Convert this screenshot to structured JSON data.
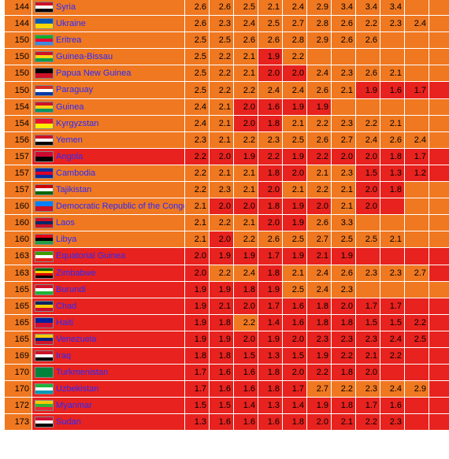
{
  "colors": {
    "orange": "#f07820",
    "red": "#e8221e",
    "link": "#2a2aff"
  },
  "rows": [
    {
      "rank": "144",
      "country": "Syria",
      "flag": [
        "#ce1126",
        "#ffffff",
        "#000000"
      ],
      "scores": [
        "2.6",
        "2.6",
        "2.5",
        "2.1",
        "2.4",
        "2.9",
        "3.4",
        "3.4",
        "3.4",
        "",
        ""
      ],
      "cls": "ooooooooooo"
    },
    {
      "rank": "144",
      "country": "Ukraine",
      "flag": [
        "#0057b7",
        "#ffd700"
      ],
      "scores": [
        "2.6",
        "2.3",
        "2.4",
        "2.5",
        "2.7",
        "2.8",
        "2.6",
        "2.2",
        "2.3",
        "2.4",
        ""
      ],
      "cls": "ooooooooooo"
    },
    {
      "rank": "150",
      "country": "Eritrea",
      "flag": [
        "#12ad2b",
        "#ea0437",
        "#4189dd"
      ],
      "scores": [
        "2.5",
        "2.5",
        "2.6",
        "2.6",
        "2.8",
        "2.9",
        "2.6",
        "2.6",
        "",
        "",
        ""
      ],
      "cls": "ooooooooooo"
    },
    {
      "rank": "150",
      "country": "Guinea-Bissau",
      "flag": [
        "#ce1126",
        "#fcd116",
        "#009e49"
      ],
      "scores": [
        "2.5",
        "2.2",
        "2.1",
        "1.9",
        "2.2",
        "",
        "",
        "",
        "",
        "",
        ""
      ],
      "cls": "oooroooooooo"
    },
    {
      "rank": "150",
      "country": "Papua New Guinea",
      "flag": [
        "#000000",
        "#ce1126"
      ],
      "scores": [
        "2.5",
        "2.2",
        "2.1",
        "2.0",
        "2.0",
        "2.4",
        "2.3",
        "2.6",
        "2.1",
        "",
        ""
      ],
      "cls": "ooorrooooooo"
    },
    {
      "rank": "150",
      "country": "Paraguay",
      "flag": [
        "#d52b1e",
        "#ffffff",
        "#0038a8"
      ],
      "scores": [
        "2.5",
        "2.2",
        "2.2",
        "2.4",
        "2.4",
        "2.6",
        "2.1",
        "1.9",
        "1.6",
        "1.7",
        ""
      ],
      "cls": "ooooooorrrr"
    },
    {
      "rank": "154",
      "country": "Guinea",
      "flag": [
        "#ce1126",
        "#fcd116",
        "#009460"
      ],
      "scores": [
        "2.4",
        "2.1",
        "2.0",
        "1.6",
        "1.9",
        "1.9",
        "",
        "",
        "",
        "",
        ""
      ],
      "cls": "oorrrroooooo"
    },
    {
      "rank": "154",
      "country": "Kyrgyzstan",
      "flag": [
        "#e8112d",
        "#ffef00"
      ],
      "scores": [
        "2.4",
        "2.1",
        "2.0",
        "1.8",
        "2.1",
        "2.2",
        "2.3",
        "2.2",
        "2.1",
        "",
        ""
      ],
      "cls": "oorrooooooo"
    },
    {
      "rank": "156",
      "country": "Yemen",
      "flag": [
        "#ce1126",
        "#ffffff",
        "#000000"
      ],
      "scores": [
        "2.3",
        "2.1",
        "2.2",
        "2.3",
        "2.5",
        "2.6",
        "2.7",
        "2.4",
        "2.6",
        "2.4",
        ""
      ],
      "cls": "ooooooooooo"
    },
    {
      "rank": "157",
      "country": "Angola",
      "flag": [
        "#cc092f",
        "#000000"
      ],
      "scores": [
        "2.2",
        "2.0",
        "1.9",
        "2.2",
        "1.9",
        "2.2",
        "2.0",
        "2.0",
        "1.8",
        "1.7",
        ""
      ],
      "cls": "rrrrrrrrrrr"
    },
    {
      "rank": "157",
      "country": "Cambodia",
      "flag": [
        "#032ea1",
        "#e00025",
        "#032ea1"
      ],
      "scores": [
        "2.2",
        "2.1",
        "2.1",
        "1.8",
        "2.0",
        "2.1",
        "2.3",
        "1.5",
        "1.3",
        "1.2",
        ""
      ],
      "cls": "ooorroorrrr"
    },
    {
      "rank": "157",
      "country": "Tajikistan",
      "flag": [
        "#cc0000",
        "#ffffff",
        "#006600"
      ],
      "scores": [
        "2.2",
        "2.3",
        "2.1",
        "2.0",
        "2.1",
        "2.2",
        "2.1",
        "2.0",
        "1.8",
        "",
        ""
      ],
      "cls": "ooorooorrooo"
    },
    {
      "rank": "160",
      "country": "Democratic Republic of the Congo",
      "flag": [
        "#007fff",
        "#ce1021"
      ],
      "scores": [
        "2.1",
        "2.0",
        "2.0",
        "1.8",
        "1.9",
        "2.0",
        "2.1",
        "2.0",
        "",
        "",
        ""
      ],
      "cls": "orrrrrorrooo"
    },
    {
      "rank": "160",
      "country": "Laos",
      "flag": [
        "#ce1126",
        "#002868",
        "#ce1126"
      ],
      "scores": [
        "2.1",
        "2.2",
        "2.1",
        "2.0",
        "1.9",
        "2.6",
        "3.3",
        "",
        "",
        "",
        ""
      ],
      "cls": "ooorrooooooo"
    },
    {
      "rank": "160",
      "country": "Libya",
      "flag": [
        "#e70013",
        "#000000",
        "#239e46"
      ],
      "scores": [
        "2.1",
        "2.0",
        "2.2",
        "2.6",
        "2.5",
        "2.7",
        "2.5",
        "2.5",
        "2.1",
        "",
        ""
      ],
      "cls": "orooooooooo"
    },
    {
      "rank": "163",
      "country": "Equatorial Guinea",
      "flag": [
        "#3e9a00",
        "#ffffff",
        "#e32118"
      ],
      "scores": [
        "2.0",
        "1.9",
        "1.9",
        "1.7",
        "1.9",
        "2.1",
        "1.9",
        "",
        "",
        "",
        ""
      ],
      "cls": "rrrrrrrrrrr"
    },
    {
      "rank": "163",
      "country": "Zimbabwe",
      "flag": [
        "#006400",
        "#ffd200",
        "#d40000",
        "#000000"
      ],
      "scores": [
        "2.0",
        "2.2",
        "2.4",
        "1.8",
        "2.1",
        "2.4",
        "2.6",
        "2.3",
        "2.3",
        "2.7",
        ""
      ],
      "cls": "rooroooooor"
    },
    {
      "rank": "165",
      "country": "Burundi",
      "flag": [
        "#ce1126",
        "#ffffff",
        "#1eb53a"
      ],
      "scores": [
        "1.9",
        "1.9",
        "1.8",
        "1.9",
        "2.5",
        "2.4",
        "2.3",
        "",
        "",
        "",
        ""
      ],
      "cls": "rrrroooooooo"
    },
    {
      "rank": "165",
      "country": "Chad",
      "flag": [
        "#002664",
        "#fecb00",
        "#c60c30"
      ],
      "scores": [
        "1.9",
        "2.1",
        "2.0",
        "1.7",
        "1.6",
        "1.8",
        "2.0",
        "1.7",
        "1.7",
        "",
        ""
      ],
      "cls": "rrrrrrrrrrr"
    },
    {
      "rank": "165",
      "country": "Haiti",
      "flag": [
        "#00209f",
        "#d21034"
      ],
      "scores": [
        "1.9",
        "1.8",
        "2.2",
        "1.4",
        "1.6",
        "1.8",
        "1.8",
        "1.5",
        "1.5",
        "2.2",
        ""
      ],
      "cls": "rrorrrrrrrr"
    },
    {
      "rank": "165",
      "country": "Venezuela",
      "flag": [
        "#ffcc00",
        "#00247d",
        "#cf142b"
      ],
      "scores": [
        "1.9",
        "1.9",
        "2.0",
        "1.9",
        "2.0",
        "2.3",
        "2.3",
        "2.3",
        "2.4",
        "2.5",
        ""
      ],
      "cls": "rrrrrrrrrrr"
    },
    {
      "rank": "169",
      "country": "Iraq",
      "flag": [
        "#ce1126",
        "#ffffff",
        "#000000"
      ],
      "scores": [
        "1.8",
        "1.8",
        "1.5",
        "1.3",
        "1.5",
        "1.9",
        "2.2",
        "2.1",
        "2.2",
        "",
        ""
      ],
      "cls": "rrrrrrrrrrr"
    },
    {
      "rank": "170",
      "country": "Turkmenistan",
      "flag": [
        "#00843d",
        "#00843d"
      ],
      "scores": [
        "1.7",
        "1.6",
        "1.6",
        "1.8",
        "2.0",
        "2.2",
        "1.8",
        "2.0",
        "",
        "",
        ""
      ],
      "cls": "rrrrrrrrrrr"
    },
    {
      "rank": "170",
      "country": "Uzbekistan",
      "flag": [
        "#1eb53a",
        "#ffffff",
        "#0099b5"
      ],
      "scores": [
        "1.7",
        "1.6",
        "1.6",
        "1.8",
        "1.7",
        "2.7",
        "2.2",
        "2.3",
        "2.4",
        "2.9",
        ""
      ],
      "cls": "rrrrrooooor"
    },
    {
      "rank": "172",
      "country": "Myanmar",
      "flag": [
        "#fecb00",
        "#34b233",
        "#ea2839"
      ],
      "scores": [
        "1.5",
        "1.5",
        "1.4",
        "1.3",
        "1.4",
        "1.9",
        "1.8",
        "1.7",
        "1.6",
        "",
        ""
      ],
      "cls": "rrrrrrrrrrr"
    },
    {
      "rank": "173",
      "country": "Sudan",
      "flag": [
        "#d21034",
        "#ffffff",
        "#000000"
      ],
      "scores": [
        "1.3",
        "1.6",
        "1.6",
        "1.6",
        "1.8",
        "2.0",
        "2.1",
        "2.2",
        "2.3",
        "",
        ""
      ],
      "cls": "rrrrrrrrrrr"
    }
  ]
}
